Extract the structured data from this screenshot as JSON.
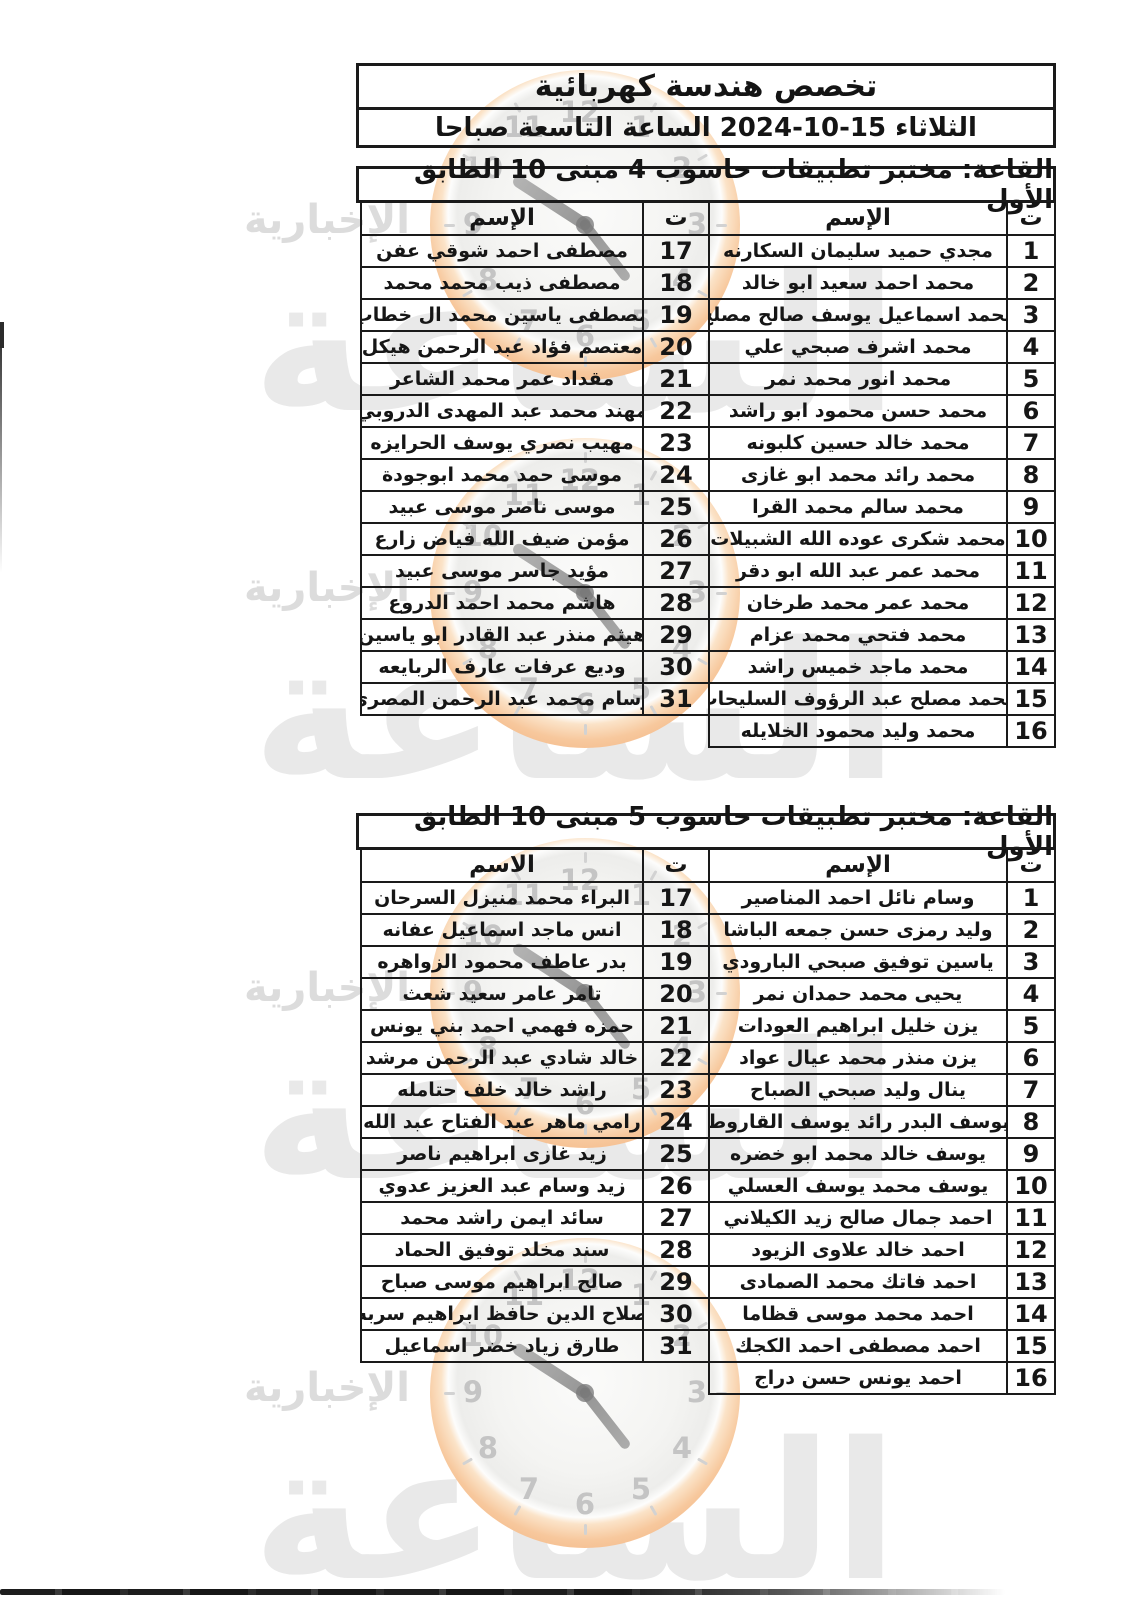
{
  "page": {
    "title": "تخصص هندسة كهربائية",
    "datetime": "الثلاثاء 15-10-2024 الساعة التاسعة صباحا"
  },
  "halls": [
    {
      "title": "القاعة: مختبر تطبيقات حاسوب 4 مبنى 10 الطابق الأول",
      "col_serial": "ت",
      "col_name_right": "الإسم",
      "col_name_left": "الإسم",
      "right_rows": [
        {
          "n": "1",
          "name": "مجدي حميد سليمان السكارنه"
        },
        {
          "n": "2",
          "name": "محمد احمد سعيد ابو خالد"
        },
        {
          "n": "3",
          "name": "محمد اسماعيل يوسف صالح مصلح"
        },
        {
          "n": "4",
          "name": "محمد اشرف صبحي علي"
        },
        {
          "n": "5",
          "name": "محمد انور محمد نمر"
        },
        {
          "n": "6",
          "name": "محمد حسن محمود ابو راشد"
        },
        {
          "n": "7",
          "name": "محمد خالد حسين كلبونه"
        },
        {
          "n": "8",
          "name": "محمد رائد محمد ابو غازى"
        },
        {
          "n": "9",
          "name": "محمد سالم محمد القرا"
        },
        {
          "n": "10",
          "name": "محمد شكرى عوده الله الشبيلات"
        },
        {
          "n": "11",
          "name": "محمد عمر عبد الله ابو دقر"
        },
        {
          "n": "12",
          "name": "محمد عمر محمد طرخان"
        },
        {
          "n": "13",
          "name": "محمد فتحي محمد عزام"
        },
        {
          "n": "14",
          "name": "محمد ماجد خميس راشد"
        },
        {
          "n": "15",
          "name": "محمد مصلح عبد الرؤوف السليحات"
        },
        {
          "n": "16",
          "name": "محمد وليد محمود الخلايله"
        }
      ],
      "left_rows": [
        {
          "n": "17",
          "name": "مصطفى احمد شوقي عفن"
        },
        {
          "n": "18",
          "name": "مصطفى ذيب محمد محمد"
        },
        {
          "n": "19",
          "name": "مصطفى ياسين محمد ال خطاب"
        },
        {
          "n": "20",
          "name": "معتصم فؤاد عبد الرحمن هيكل"
        },
        {
          "n": "21",
          "name": "مقداد عمر محمد الشاعر"
        },
        {
          "n": "22",
          "name": "مهند محمد عبد المهدى الدروبي"
        },
        {
          "n": "23",
          "name": "مهيب نصري يوسف الحرايزه"
        },
        {
          "n": "24",
          "name": "موسى حمد محمد ابوجودة"
        },
        {
          "n": "25",
          "name": "موسى ناصر موسى عبيد"
        },
        {
          "n": "26",
          "name": "مؤمن ضيف الله فياض زارع"
        },
        {
          "n": "27",
          "name": "مؤيد جاسر موسى عبيد"
        },
        {
          "n": "28",
          "name": "هاشم محمد احمد الدروع"
        },
        {
          "n": "29",
          "name": "هيثم منذر عبد القادر ابو ياسين"
        },
        {
          "n": "30",
          "name": "وديع عرفات عارف الربايعه"
        },
        {
          "n": "31",
          "name": "وسام محمد عبد الرحمن المصري"
        }
      ]
    },
    {
      "title": "القاعة: مختبر تطبيقات حاسوب 5 مبنى 10 الطابق الأول",
      "col_serial": "ت",
      "col_name_right": "الإسم",
      "col_name_left": "الاسم",
      "right_rows": [
        {
          "n": "1",
          "name": "وسام نائل احمد المناصير"
        },
        {
          "n": "2",
          "name": "وليد رمزى حسن جمعه الباشا"
        },
        {
          "n": "3",
          "name": "ياسين توفيق صبحي البارودي"
        },
        {
          "n": "4",
          "name": "يحيى محمد حمدان نمر"
        },
        {
          "n": "5",
          "name": "يزن خليل ابراهيم العودات"
        },
        {
          "n": "6",
          "name": "يزن منذر محمد عيال عواد"
        },
        {
          "n": "7",
          "name": "ينال وليد صبحي الصباح"
        },
        {
          "n": "8",
          "name": "يوسف البدر رائد يوسف القاروط"
        },
        {
          "n": "9",
          "name": "يوسف خالد محمد ابو خضره"
        },
        {
          "n": "10",
          "name": "يوسف محمد يوسف العسلي"
        },
        {
          "n": "11",
          "name": "احمد جمال صالح زيد الكيلاني"
        },
        {
          "n": "12",
          "name": "احمد خالد علاوى الزيود"
        },
        {
          "n": "13",
          "name": "احمد فاتك محمد الصمادى"
        },
        {
          "n": "14",
          "name": "احمد محمد موسى قظاما"
        },
        {
          "n": "15",
          "name": "احمد مصطفى احمد الكجك"
        },
        {
          "n": "16",
          "name": "احمد يونس حسن دراج"
        }
      ],
      "left_rows": [
        {
          "n": "17",
          "name": "البراء محمد منيزل السرحان"
        },
        {
          "n": "18",
          "name": "انس ماجد اسماعيل عفانه"
        },
        {
          "n": "19",
          "name": "بدر عاطف محمود الزواهره"
        },
        {
          "n": "20",
          "name": "تامر عامر سعيد شعث"
        },
        {
          "n": "21",
          "name": "حمزه فهمي احمد بني يونس"
        },
        {
          "n": "22",
          "name": "خالد شادي عبد الرحمن مرشد"
        },
        {
          "n": "23",
          "name": "راشد خالد خلف حتامله"
        },
        {
          "n": "24",
          "name": "رامي ماهر عبد الفتاح عبد الله"
        },
        {
          "n": "25",
          "name": "زيد غازى ابراهيم ناصر"
        },
        {
          "n": "26",
          "name": "زيد وسام عبد العزيز عدوي"
        },
        {
          "n": "27",
          "name": "سائد ايمن راشد محمد"
        },
        {
          "n": "28",
          "name": "سند مخلد توفيق الحماد"
        },
        {
          "n": "29",
          "name": "صالح ابراهيم موسى صباح"
        },
        {
          "n": "30",
          "name": "صلاح الدين حافظ ابراهيم سربه"
        },
        {
          "n": "31",
          "name": "طارق زياد خضر اسماعيل"
        }
      ]
    }
  ],
  "watermark": {
    "brand": "الساعة",
    "subtext": "الإخبارية",
    "clock_numbers": [
      "1",
      "2",
      "3",
      "4",
      "5",
      "6",
      "7",
      "8",
      "9",
      "10",
      "11",
      "12"
    ],
    "ring_color": "#f3ad79",
    "text_color": "#e9e9e9",
    "tops": [
      70,
      438,
      838,
      1238
    ]
  }
}
